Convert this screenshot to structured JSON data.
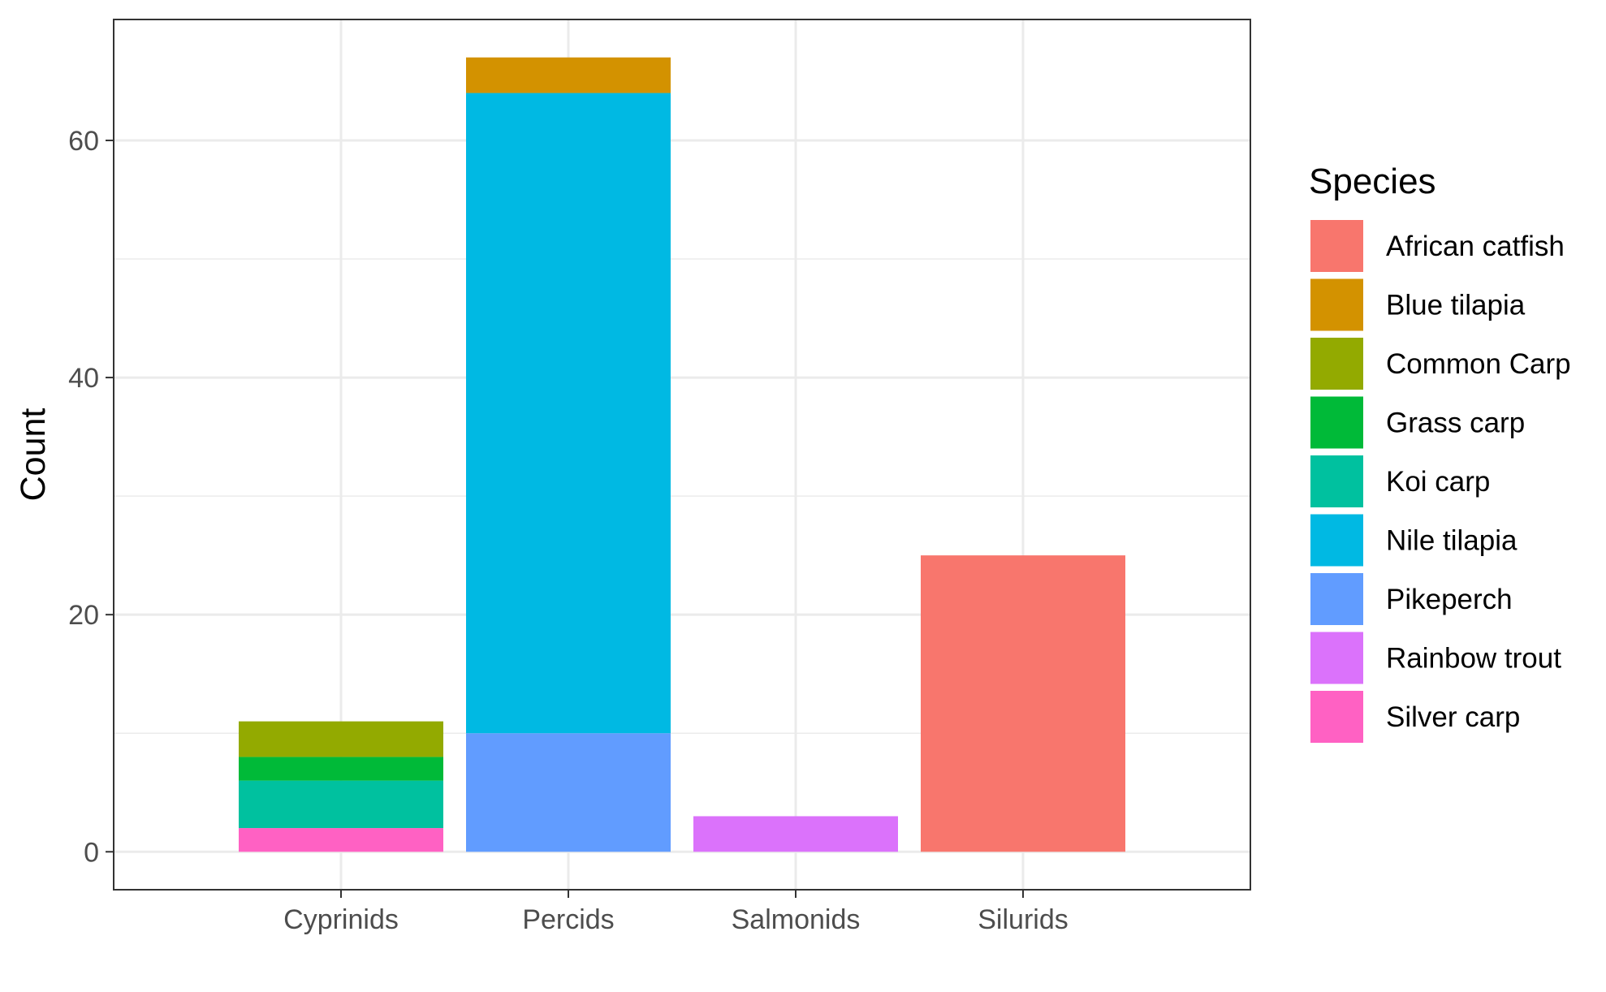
{
  "chart_data": {
    "type": "bar",
    "stacked": true,
    "categories": [
      "Cyprinids",
      "Percids",
      "Salmonids",
      "Silurids"
    ],
    "ylabel": "Count",
    "xlabel": "",
    "ylim": [
      -3.2,
      70.2
    ],
    "yticks": [
      0,
      20,
      40,
      60
    ],
    "grid": true,
    "legend": {
      "title": "Species",
      "position": "right"
    },
    "series": [
      {
        "name": "African catfish",
        "color": "#F8766D",
        "values": [
          0,
          0,
          0,
          25
        ]
      },
      {
        "name": "Blue tilapia",
        "color": "#D39200",
        "values": [
          0,
          3,
          0,
          0
        ]
      },
      {
        "name": "Common Carp",
        "color": "#93AA00",
        "values": [
          3,
          0,
          0,
          0
        ]
      },
      {
        "name": "Grass carp",
        "color": "#00BA38",
        "values": [
          2,
          0,
          0,
          0
        ]
      },
      {
        "name": "Koi carp",
        "color": "#00C19F",
        "values": [
          4,
          0,
          0,
          0
        ]
      },
      {
        "name": "Nile tilapia",
        "color": "#00B9E3",
        "values": [
          0,
          54,
          0,
          0
        ]
      },
      {
        "name": "Pikeperch",
        "color": "#619CFF",
        "values": [
          0,
          10,
          0,
          0
        ]
      },
      {
        "name": "Rainbow trout",
        "color": "#DB72FB",
        "values": [
          0,
          0,
          3,
          0
        ]
      },
      {
        "name": "Silver carp",
        "color": "#FF61C3",
        "values": [
          2,
          0,
          0,
          0
        ]
      }
    ]
  }
}
